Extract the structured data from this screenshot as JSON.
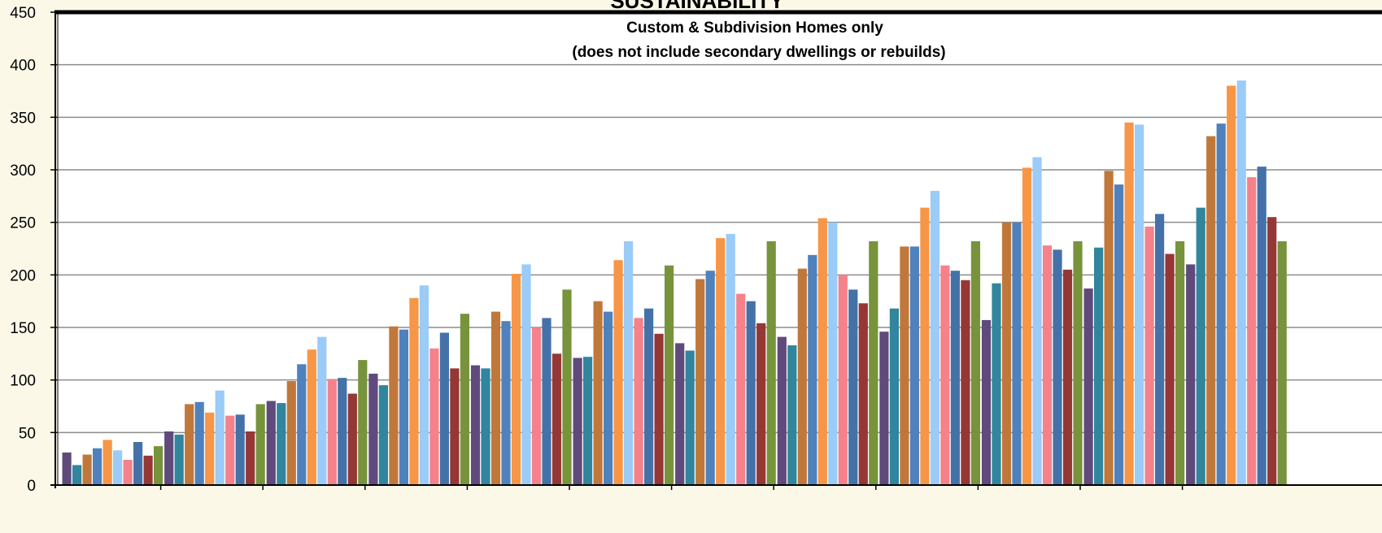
{
  "chart_data": {
    "type": "bar",
    "title": "SUSTAINABILITY",
    "subtitle_line1": "Custom & Subdivision Homes only",
    "subtitle_line2": "(does not include secondary dwellings or rebuilds)",
    "xlabel": "",
    "ylabel": "",
    "ylim": [
      0,
      450
    ],
    "yticks": [
      0,
      50,
      100,
      150,
      200,
      250,
      300,
      350,
      400,
      450
    ],
    "grid": true,
    "legend": "none",
    "colors": [
      "#604a7b",
      "#31859c",
      "#c0783a",
      "#4f81bd",
      "#f79646",
      "#9bcbf7",
      "#f5818a",
      "#4472a8",
      "#953735",
      "#77933c"
    ],
    "groups": [
      [
        31,
        19,
        29,
        35,
        43,
        33,
        24,
        41,
        28,
        37
      ],
      [
        51,
        48,
        77,
        79,
        69,
        90,
        66,
        67,
        51,
        77
      ],
      [
        80,
        78,
        99,
        115,
        129,
        141,
        101,
        102,
        87,
        119
      ],
      [
        106,
        95,
        151,
        148,
        178,
        190,
        130,
        145,
        111,
        163
      ],
      [
        114,
        111,
        165,
        156,
        201,
        210,
        150,
        159,
        125,
        186
      ],
      [
        121,
        122,
        175,
        165,
        214,
        232,
        159,
        168,
        144,
        209
      ],
      [
        135,
        128,
        196,
        204,
        235,
        239,
        182,
        175,
        154,
        232
      ],
      [
        141,
        133,
        206,
        219,
        254,
        250,
        200,
        186,
        173,
        232
      ],
      [
        146,
        168,
        227,
        227,
        264,
        280,
        209,
        204,
        195,
        232
      ],
      [
        157,
        192,
        250,
        250,
        302,
        312,
        228,
        224,
        205,
        232
      ],
      [
        187,
        226,
        299,
        286,
        345,
        343,
        246,
        258,
        220,
        232
      ],
      [
        210,
        264,
        332,
        344,
        380,
        385,
        293,
        303,
        255,
        232
      ]
    ]
  }
}
